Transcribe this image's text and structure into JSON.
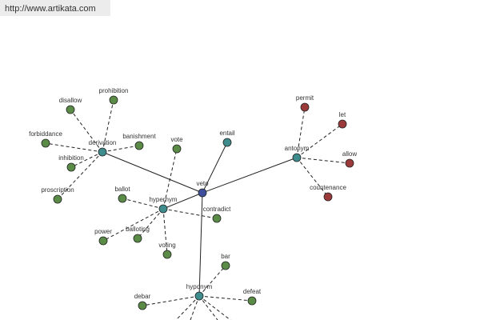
{
  "header": {
    "url": "http://www.artikata.com"
  },
  "nodes": [
    {
      "label": "veto"
    },
    {
      "label": "derivation"
    },
    {
      "label": "entail"
    },
    {
      "label": "antonym"
    },
    {
      "label": "hypernym"
    },
    {
      "label": "hyponym"
    },
    {
      "label": "disallow"
    },
    {
      "label": "prohibition"
    },
    {
      "label": "forbiddance"
    },
    {
      "label": "banishment"
    },
    {
      "label": "inhibition"
    },
    {
      "label": "proscription"
    },
    {
      "label": "vote"
    },
    {
      "label": "ballot"
    },
    {
      "label": "contradict"
    },
    {
      "label": "power"
    },
    {
      "label": "balloting"
    },
    {
      "label": "voting"
    },
    {
      "label": "permit"
    },
    {
      "label": "let"
    },
    {
      "label": "allow"
    },
    {
      "label": "countenance"
    },
    {
      "label": "bar"
    },
    {
      "label": "debar"
    },
    {
      "label": "defeat"
    }
  ]
}
